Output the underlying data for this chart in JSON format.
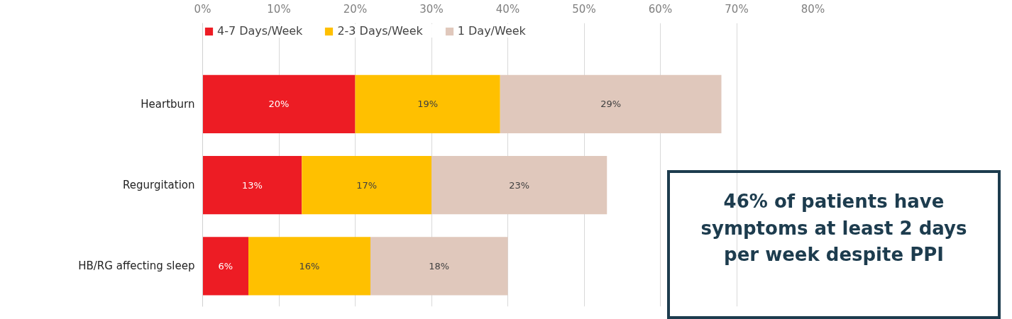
{
  "chart_data": {
    "type": "bar",
    "orientation": "horizontal",
    "stacked": true,
    "categories": [
      "Heartburn",
      "Regurgitation",
      "HB/RG affecting sleep"
    ],
    "series": [
      {
        "name": "4-7 Days/Week",
        "color": "#ed1c24",
        "values": [
          20,
          13,
          6
        ],
        "value_labels": [
          "20%",
          "13%",
          "6%"
        ]
      },
      {
        "name": "2-3 Days/Week",
        "color": "#ffc000",
        "values": [
          19,
          17,
          16
        ],
        "value_labels": [
          "19%",
          "17%",
          "16%"
        ]
      },
      {
        "name": "1 Day/Week",
        "color": "#e0c8bc",
        "values": [
          29,
          23,
          18
        ],
        "value_labels": [
          "29%",
          "23%",
          "18%"
        ]
      }
    ],
    "xlim": [
      0,
      80
    ],
    "xticks": [
      {
        "value": 0,
        "label": "0%"
      },
      {
        "value": 10,
        "label": "10%"
      },
      {
        "value": 20,
        "label": "20%"
      },
      {
        "value": 30,
        "label": "30%"
      },
      {
        "value": 40,
        "label": "40%"
      },
      {
        "value": 50,
        "label": "50%"
      },
      {
        "value": 60,
        "label": "60%"
      },
      {
        "value": 70,
        "label": "70%"
      },
      {
        "value": 80,
        "label": "80%"
      }
    ],
    "grid": "x",
    "legend": "top left",
    "annotations": [
      "46% of patients have\nsymptoms at least 2 days\nper week despite PPI"
    ]
  }
}
